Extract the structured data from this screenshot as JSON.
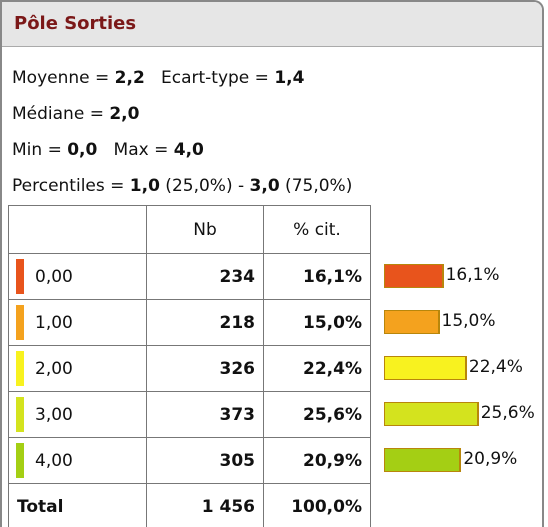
{
  "title": "Pôle Sorties",
  "stats": [
    [
      {
        "text": "Moyenne = ",
        "bold": false
      },
      {
        "text": "2,2",
        "bold": true
      },
      {
        "text": "   Ecart-type = ",
        "bold": false
      },
      {
        "text": "1,4",
        "bold": true
      }
    ],
    [
      {
        "text": "Médiane = ",
        "bold": false
      },
      {
        "text": "2,0",
        "bold": true
      }
    ],
    [
      {
        "text": "Min = ",
        "bold": false
      },
      {
        "text": "0,0",
        "bold": true
      },
      {
        "text": "   Max = ",
        "bold": false
      },
      {
        "text": "4,0",
        "bold": true
      }
    ],
    [
      {
        "text": "Percentiles = ",
        "bold": false
      },
      {
        "text": "1,0",
        "bold": true
      },
      {
        "text": " (25,0%) - ",
        "bold": false
      },
      {
        "text": "3,0",
        "bold": true
      },
      {
        "text": " (75,0%)",
        "bold": false
      }
    ]
  ],
  "table": {
    "header": [
      "Nb",
      "% cit."
    ],
    "rows": [
      {
        "label": "0,00",
        "nb": "234",
        "color": "#e8541c"
      },
      {
        "label": "1,00",
        "nb": "218",
        "color": "#f4a21e"
      },
      {
        "label": "2,00",
        "nb": "326",
        "color": "#f8f21f"
      },
      {
        "label": "3,00",
        "nb": "373",
        "color": "#d4e31e"
      },
      {
        "label": "4,00",
        "nb": "305",
        "color": "#a4cf14"
      }
    ],
    "total": {
      "label": "Total",
      "nb": "1 456",
      "pct": "100,0%"
    }
  },
  "chart_data": {
    "type": "bar",
    "values": [
      16.1,
      15.0,
      22.4,
      25.6,
      20.9
    ],
    "value_labels": [
      "16,1%",
      "15,0%",
      "22,4%",
      "25,6%",
      "20,9%"
    ]
  }
}
